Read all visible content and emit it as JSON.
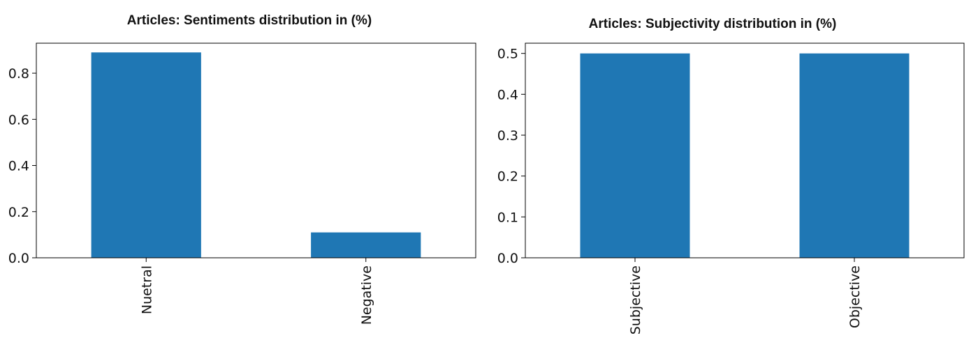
{
  "chart_data": [
    {
      "type": "bar",
      "title": "Articles: Sentiments distribution in (%)",
      "xlabel": "",
      "ylabel": "",
      "categories": [
        "Nuetral",
        "Negative"
      ],
      "values": [
        0.89,
        0.11
      ],
      "ylim": [
        0,
        0.93
      ],
      "yticks": [
        0.0,
        0.2,
        0.4,
        0.6,
        0.8
      ],
      "ytick_labels": [
        "0.0",
        "0.2",
        "0.4",
        "0.6",
        "0.8"
      ],
      "grid": false,
      "bar_color": "#1f77b4"
    },
    {
      "type": "bar",
      "title": "Articles: Subjectivity distribution in (%)",
      "xlabel": "",
      "ylabel": "",
      "categories": [
        "Subjective",
        "Objective"
      ],
      "values": [
        0.5,
        0.5
      ],
      "ylim": [
        0,
        0.525
      ],
      "yticks": [
        0.0,
        0.1,
        0.2,
        0.3,
        0.4,
        0.5
      ],
      "ytick_labels": [
        "0.0",
        "0.1",
        "0.2",
        "0.3",
        "0.4",
        "0.5"
      ],
      "grid": false,
      "bar_color": "#1f77b4"
    }
  ]
}
